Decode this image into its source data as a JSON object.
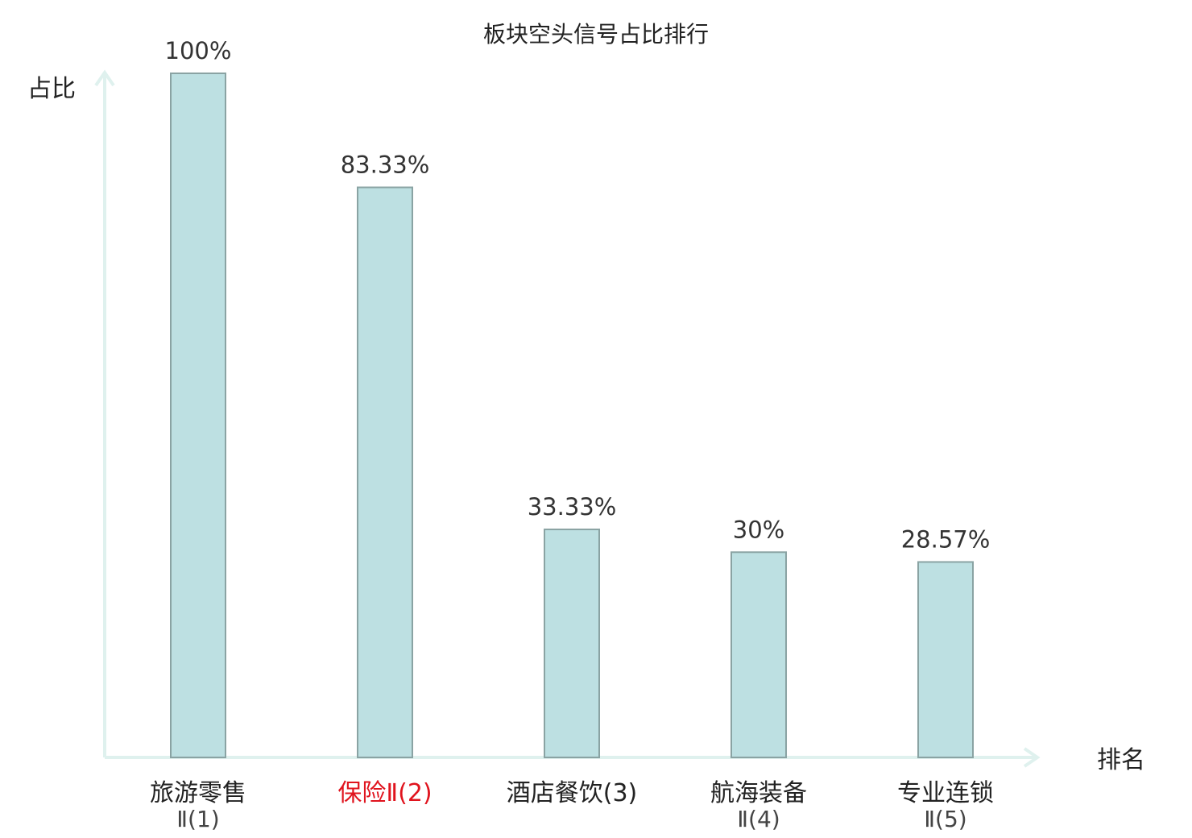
{
  "chart_data": {
    "type": "bar",
    "title": "板块空头信号占比排行",
    "ylabel": "占比",
    "xlabel": "排名",
    "ylim": [
      0,
      100
    ],
    "grid": false,
    "categories": [
      {
        "line1": "旅游零售",
        "line2": "Ⅱ(1)",
        "highlight": false
      },
      {
        "line1": "保险Ⅱ(2)",
        "line2": "",
        "highlight": true
      },
      {
        "line1": "酒店餐饮(3)",
        "line2": "",
        "highlight": false
      },
      {
        "line1": "航海装备",
        "line2": "Ⅱ(4)",
        "highlight": false
      },
      {
        "line1": "专业连锁",
        "line2": "Ⅱ(5)",
        "highlight": false
      }
    ],
    "values": [
      100,
      83.33,
      33.33,
      30,
      28.57
    ],
    "value_labels": [
      "100%",
      "83.33%",
      "33.33%",
      "30%",
      "28.57%"
    ],
    "colors": {
      "bar_fill": "#bde0e2",
      "bar_stroke": "#8aa3a3",
      "axis": "#dff1ee",
      "highlight_text": "#e0141e",
      "normal_text": "#222222"
    }
  }
}
